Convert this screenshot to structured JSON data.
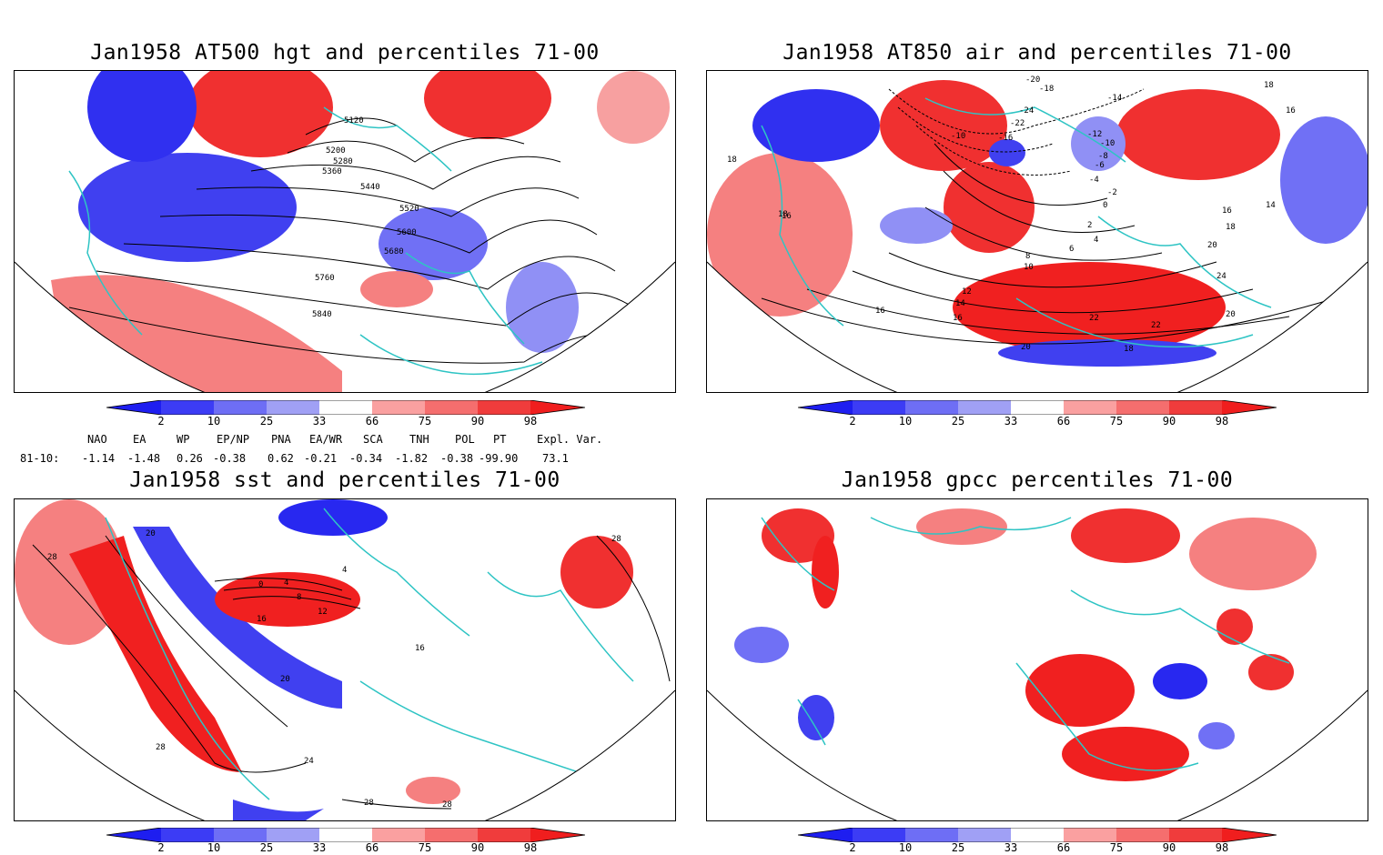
{
  "panels": [
    {
      "title": "Jan1958 AT500 hgt and percentiles 71-00",
      "contour_labels": [
        "5120",
        "5200",
        "5280",
        "5360",
        "5440",
        "5520",
        "5600",
        "5680",
        "5760",
        "5840"
      ]
    },
    {
      "title": "Jan1958 AT850 air and percentiles 71-00",
      "contour_labels": [
        "-20",
        "-18",
        "-14",
        "-24",
        "-22",
        "-16",
        "-10",
        "-12",
        "-10",
        "-8",
        "-6",
        "-4",
        "-2",
        "0",
        "2",
        "4",
        "6",
        "8",
        "10",
        "12",
        "14",
        "16",
        "16",
        "18",
        "18",
        "16",
        "14",
        "16",
        "18",
        "20",
        "24",
        "22",
        "22",
        "20",
        "20",
        "18",
        "16",
        "18"
      ]
    },
    {
      "title": "Jan1958 sst and percentiles 71-00",
      "contour_labels": [
        "20",
        "28",
        "0",
        "4",
        "8",
        "12",
        "16",
        "20",
        "24",
        "28",
        "28",
        "16",
        "4",
        "28",
        "28"
      ]
    },
    {
      "title": "Jan1958 gpcc percentiles 71-00",
      "contour_labels": []
    }
  ],
  "colorbar": {
    "labels": [
      "2",
      "10",
      "25",
      "33",
      "66",
      "75",
      "90",
      "98"
    ],
    "colors": [
      "#1e1ef0",
      "#3c3cf5",
      "#6e6ef5",
      "#a0a0f5",
      "#ffffff",
      "#faa0a0",
      "#f56e6e",
      "#f03c3c",
      "#f01e1e"
    ]
  },
  "indices": {
    "headers": [
      "NAO",
      "EA",
      "WP",
      "EP/NP",
      "PNA",
      "EA/WR",
      "SCA",
      "TNH",
      "POL",
      "PT",
      "Expl. Var."
    ],
    "row_label": "81-10:",
    "values": [
      "-1.14",
      "-1.48",
      "0.26",
      "-0.38",
      "0.62",
      "-0.21",
      "-0.34",
      "-1.82",
      "-0.38",
      "-99.90",
      "73.1"
    ]
  },
  "colors": {
    "coast": "#2ec4c4",
    "red": "#f02020",
    "blue": "#2828f0"
  }
}
